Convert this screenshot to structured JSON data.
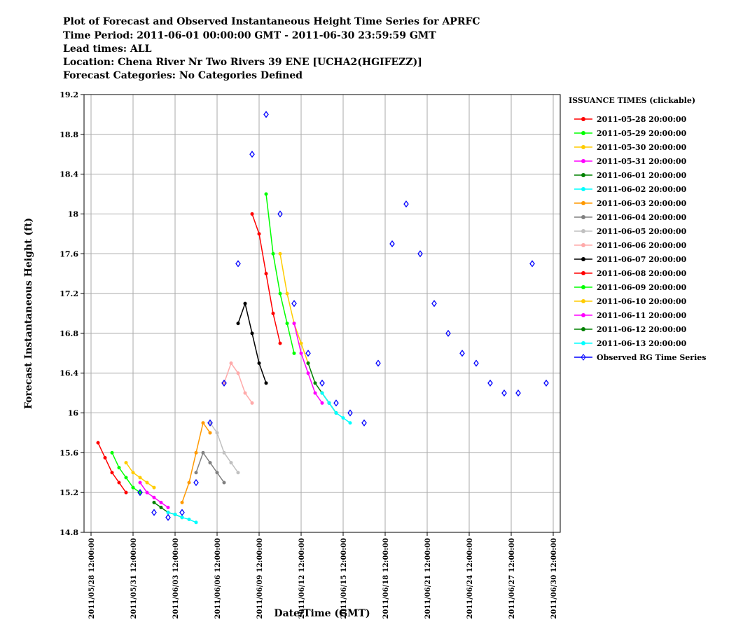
{
  "chart_data": {
    "type": "line",
    "title": "Plot of Forecast and Observed Instantaneous Height Time Series for APRFC",
    "subtitles": [
      "Time Period: 2011-06-01 00:00:00 GMT - 2011-06-30 23:59:59 GMT",
      "Lead times: ALL",
      "Location: Chena River Nr Two Rivers 39 ENE [UCHA2(HGIFEZZ)]",
      "Forecast Categories: No Categories Defined"
    ],
    "x_label": "Date/Time (GMT)",
    "y_label": "Forecast Instantaneous Height (ft)",
    "legend_title": "ISSUANCE TIMES (clickable)",
    "legend": "right",
    "grid": true,
    "xlim": [
      "2011/05/28 00:00:00",
      "2011/07/01 00:00:00"
    ],
    "xticks": [
      "2011/05/28 12:00:00",
      "2011/05/31 12:00:00",
      "2011/06/03 12:00:00",
      "2011/06/06 12:00:00",
      "2011/06/09 12:00:00",
      "2011/06/12 12:00:00",
      "2011/06/15 12:00:00",
      "2011/06/18 12:00:00",
      "2011/06/21 12:00:00",
      "2011/06/24 12:00:00",
      "2011/06/27 12:00:00",
      "2011/06/30 12:00:00"
    ],
    "ylim": [
      14.8,
      19.2
    ],
    "yticks": [
      14.8,
      15.2,
      15.6,
      16.0,
      16.4,
      16.8,
      17.2,
      17.6,
      18.0,
      18.4,
      18.8,
      19.2
    ],
    "series": [
      {
        "name": "2011-05-28 20:00:00",
        "color": "#ff0000",
        "marker": "circle",
        "x": [
          "2011/05/29 00:00:00",
          "2011/05/29 12:00:00",
          "2011/05/30 00:00:00",
          "2011/05/30 12:00:00",
          "2011/05/31 00:00:00"
        ],
        "values": [
          15.7,
          15.55,
          15.4,
          15.3,
          15.2
        ]
      },
      {
        "name": "2011-05-29 20:00:00",
        "color": "#00ff00",
        "marker": "circle",
        "x": [
          "2011/05/30 00:00:00",
          "2011/05/30 12:00:00",
          "2011/05/31 00:00:00",
          "2011/05/31 12:00:00",
          "2011/06/01 00:00:00"
        ],
        "values": [
          15.6,
          15.45,
          15.35,
          15.25,
          15.2
        ]
      },
      {
        "name": "2011-05-30 20:00:00",
        "color": "#ffcc00",
        "marker": "circle",
        "x": [
          "2011/05/31 00:00:00",
          "2011/05/31 12:00:00",
          "2011/06/01 00:00:00",
          "2011/06/01 12:00:00",
          "2011/06/02 00:00:00"
        ],
        "values": [
          15.5,
          15.4,
          15.35,
          15.3,
          15.25
        ]
      },
      {
        "name": "2011-05-31 20:00:00",
        "color": "#ff00ff",
        "marker": "circle",
        "x": [
          "2011/06/01 00:00:00",
          "2011/06/01 12:00:00",
          "2011/06/02 00:00:00",
          "2011/06/02 12:00:00",
          "2011/06/03 00:00:00"
        ],
        "values": [
          15.3,
          15.2,
          15.15,
          15.1,
          15.05
        ]
      },
      {
        "name": "2011-06-01 20:00:00",
        "color": "#008000",
        "marker": "circle",
        "x": [
          "2011/06/02 00:00:00",
          "2011/06/02 12:00:00",
          "2011/06/03 00:00:00",
          "2011/06/03 12:00:00",
          "2011/06/04 00:00:00"
        ],
        "values": [
          15.1,
          15.05,
          15.0,
          14.98,
          14.95
        ]
      },
      {
        "name": "2011-06-02 20:00:00",
        "color": "#00ffff",
        "marker": "circle",
        "x": [
          "2011/06/03 00:00:00",
          "2011/06/03 12:00:00",
          "2011/06/04 00:00:00",
          "2011/06/04 12:00:00",
          "2011/06/05 00:00:00"
        ],
        "values": [
          15.0,
          14.98,
          14.95,
          14.93,
          14.9
        ]
      },
      {
        "name": "2011-06-03 20:00:00",
        "color": "#ff9900",
        "marker": "circle",
        "x": [
          "2011/06/04 00:00:00",
          "2011/06/04 12:00:00",
          "2011/06/05 00:00:00",
          "2011/06/05 12:00:00",
          "2011/06/06 00:00:00"
        ],
        "values": [
          15.1,
          15.3,
          15.6,
          15.9,
          15.8
        ]
      },
      {
        "name": "2011-06-04 20:00:00",
        "color": "#808080",
        "marker": "circle",
        "x": [
          "2011/06/05 00:00:00",
          "2011/06/05 12:00:00",
          "2011/06/06 00:00:00",
          "2011/06/06 12:00:00",
          "2011/06/07 00:00:00"
        ],
        "values": [
          15.4,
          15.6,
          15.5,
          15.4,
          15.3
        ]
      },
      {
        "name": "2011-06-05 20:00:00",
        "color": "#c0c0c0",
        "marker": "circle",
        "x": [
          "2011/06/06 00:00:00",
          "2011/06/06 12:00:00",
          "2011/06/07 00:00:00",
          "2011/06/07 12:00:00",
          "2011/06/08 00:00:00"
        ],
        "values": [
          15.9,
          15.8,
          15.6,
          15.5,
          15.4
        ]
      },
      {
        "name": "2011-06-06 20:00:00",
        "color": "#ffaaaa",
        "marker": "circle",
        "x": [
          "2011/06/07 00:00:00",
          "2011/06/07 12:00:00",
          "2011/06/08 00:00:00",
          "2011/06/08 12:00:00",
          "2011/06/09 00:00:00"
        ],
        "values": [
          16.3,
          16.5,
          16.4,
          16.2,
          16.1
        ]
      },
      {
        "name": "2011-06-07 20:00:00",
        "color": "#000000",
        "marker": "circle",
        "x": [
          "2011/06/08 00:00:00",
          "2011/06/08 12:00:00",
          "2011/06/09 00:00:00",
          "2011/06/09 12:00:00",
          "2011/06/10 00:00:00"
        ],
        "values": [
          16.9,
          17.1,
          16.8,
          16.5,
          16.3
        ]
      },
      {
        "name": "2011-06-08 20:00:00",
        "color": "#ff0000",
        "marker": "circle",
        "x": [
          "2011/06/09 00:00:00",
          "2011/06/09 12:00:00",
          "2011/06/10 00:00:00",
          "2011/06/10 12:00:00",
          "2011/06/11 00:00:00"
        ],
        "values": [
          18.0,
          17.8,
          17.4,
          17.0,
          16.7
        ]
      },
      {
        "name": "2011-06-09 20:00:00",
        "color": "#00ff00",
        "marker": "circle",
        "x": [
          "2011/06/10 00:00:00",
          "2011/06/10 12:00:00",
          "2011/06/11 00:00:00",
          "2011/06/11 12:00:00",
          "2011/06/12 00:00:00"
        ],
        "values": [
          18.2,
          17.6,
          17.2,
          16.9,
          16.6
        ]
      },
      {
        "name": "2011-06-10 20:00:00",
        "color": "#ffcc00",
        "marker": "circle",
        "x": [
          "2011/06/11 00:00:00",
          "2011/06/11 12:00:00",
          "2011/06/12 00:00:00",
          "2011/06/12 12:00:00",
          "2011/06/13 00:00:00"
        ],
        "values": [
          17.6,
          17.2,
          16.9,
          16.7,
          16.5
        ]
      },
      {
        "name": "2011-06-11 20:00:00",
        "color": "#ff00ff",
        "marker": "circle",
        "x": [
          "2011/06/12 00:00:00",
          "2011/06/12 12:00:00",
          "2011/06/13 00:00:00",
          "2011/06/13 12:00:00",
          "2011/06/14 00:00:00"
        ],
        "values": [
          16.9,
          16.6,
          16.4,
          16.2,
          16.1
        ]
      },
      {
        "name": "2011-06-12 20:00:00",
        "color": "#008000",
        "marker": "circle",
        "x": [
          "2011/06/13 00:00:00",
          "2011/06/13 12:00:00",
          "2011/06/14 00:00:00",
          "2011/06/14 12:00:00",
          "2011/06/15 00:00:00"
        ],
        "values": [
          16.5,
          16.3,
          16.2,
          16.1,
          16.0
        ]
      },
      {
        "name": "2011-06-13 20:00:00",
        "color": "#00ffff",
        "marker": "circle",
        "x": [
          "2011/06/14 00:00:00",
          "2011/06/14 12:00:00",
          "2011/06/15 00:00:00",
          "2011/06/15 12:00:00",
          "2011/06/16 00:00:00"
        ],
        "values": [
          16.2,
          16.1,
          16.0,
          15.95,
          15.9
        ]
      },
      {
        "name": "Observed RG Time Series",
        "color": "#0000ff",
        "marker": "diamond",
        "x": [
          "2011/06/01 00:00:00",
          "2011/06/02 00:00:00",
          "2011/06/03 00:00:00",
          "2011/06/04 00:00:00",
          "2011/06/05 00:00:00",
          "2011/06/06 00:00:00",
          "2011/06/07 00:00:00",
          "2011/06/08 00:00:00",
          "2011/06/09 00:00:00",
          "2011/06/10 00:00:00",
          "2011/06/11 00:00:00",
          "2011/06/12 00:00:00",
          "2011/06/13 00:00:00",
          "2011/06/14 00:00:00",
          "2011/06/15 00:00:00",
          "2011/06/16 00:00:00",
          "2011/06/17 00:00:00",
          "2011/06/18 00:00:00",
          "2011/06/19 00:00:00",
          "2011/06/20 00:00:00",
          "2011/06/21 00:00:00",
          "2011/06/22 00:00:00",
          "2011/06/23 00:00:00",
          "2011/06/24 00:00:00",
          "2011/06/25 00:00:00",
          "2011/06/26 00:00:00",
          "2011/06/27 00:00:00",
          "2011/06/28 00:00:00",
          "2011/06/29 00:00:00",
          "2011/06/30 00:00:00"
        ],
        "values": [
          15.2,
          15.0,
          14.95,
          15.0,
          15.3,
          15.9,
          16.3,
          17.5,
          18.6,
          19.0,
          18.0,
          17.1,
          16.6,
          16.3,
          16.1,
          16.0,
          15.9,
          16.5,
          17.7,
          18.1,
          17.6,
          17.1,
          16.8,
          16.6,
          16.5,
          16.3,
          16.2,
          16.2,
          17.5,
          16.3
        ]
      }
    ]
  }
}
